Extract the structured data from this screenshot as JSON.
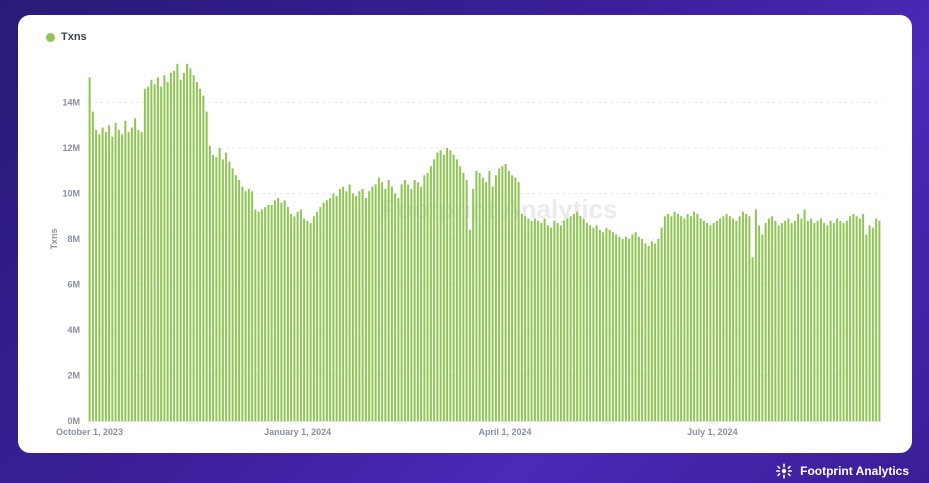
{
  "colors": {
    "series": "#8fc553",
    "background_start": "#2a1a78",
    "background_end": "#4a2ab8",
    "card": "#ffffff"
  },
  "watermark_text": "Footprint Analytics",
  "brand": {
    "text": "Footprint Analytics",
    "icon": "footprint-logo-icon"
  },
  "chart_data": {
    "type": "bar",
    "title": "",
    "xlabel": "",
    "ylabel": "Txns",
    "ylim": [
      0,
      16
    ],
    "y_unit": "M",
    "grid": true,
    "legend": {
      "position": "top-left",
      "entries": [
        "Txns"
      ]
    },
    "yticks": [
      "0M",
      "2M",
      "4M",
      "6M",
      "8M",
      "10M",
      "12M",
      "14M"
    ],
    "ytick_values": [
      0,
      2,
      4,
      6,
      8,
      10,
      12,
      14
    ],
    "xticks": [
      {
        "label": "October 1, 2023",
        "date": "2023-10-01"
      },
      {
        "label": "January 1, 2024",
        "date": "2024-01-01"
      },
      {
        "label": "April 1, 2024",
        "date": "2024-04-01"
      },
      {
        "label": "July 1, 2024",
        "date": "2024-07-01"
      }
    ],
    "x_start": "2023-10-01",
    "x_end": "2024-09-13",
    "series": [
      {
        "name": "Txns",
        "values": [
          15.1,
          13.6,
          12.8,
          12.6,
          12.9,
          12.7,
          13.0,
          12.5,
          13.1,
          12.8,
          12.6,
          13.2,
          12.7,
          12.9,
          13.3,
          12.8,
          12.7,
          14.6,
          14.7,
          15.0,
          14.8,
          15.1,
          14.7,
          15.2,
          14.9,
          15.3,
          15.4,
          15.7,
          15.0,
          15.3,
          15.7,
          15.5,
          15.2,
          14.9,
          14.6,
          14.3,
          13.6,
          12.1,
          11.7,
          11.6,
          12.0,
          11.5,
          11.8,
          11.4,
          11.1,
          10.8,
          10.6,
          10.3,
          10.1,
          10.2,
          10.1,
          9.3,
          9.2,
          9.3,
          9.4,
          9.5,
          9.5,
          9.7,
          9.8,
          9.6,
          9.7,
          9.4,
          9.1,
          9.0,
          9.2,
          9.3,
          8.9,
          8.8,
          8.7,
          9.0,
          9.2,
          9.4,
          9.6,
          9.7,
          9.8,
          10.0,
          9.9,
          10.2,
          10.3,
          10.1,
          10.4,
          10.0,
          9.9,
          10.1,
          10.2,
          9.8,
          10.1,
          10.3,
          10.4,
          10.7,
          10.5,
          10.2,
          10.6,
          10.3,
          10.0,
          9.8,
          10.4,
          10.6,
          10.4,
          10.2,
          10.6,
          10.5,
          10.3,
          10.8,
          10.9,
          11.2,
          11.5,
          11.8,
          11.9,
          11.7,
          12.0,
          11.9,
          11.7,
          11.5,
          11.2,
          10.9,
          10.6,
          8.4,
          10.2,
          11.0,
          10.9,
          10.7,
          10.5,
          11.0,
          10.3,
          10.8,
          11.1,
          11.2,
          11.3,
          11.0,
          10.8,
          10.7,
          10.5,
          9.1,
          9.0,
          8.9,
          8.8,
          8.9,
          8.8,
          8.7,
          8.9,
          8.6,
          8.5,
          8.8,
          8.7,
          8.6,
          8.8,
          8.9,
          9.0,
          9.1,
          9.2,
          9.0,
          8.9,
          8.7,
          8.6,
          8.5,
          8.6,
          8.4,
          8.3,
          8.5,
          8.4,
          8.3,
          8.2,
          8.1,
          8.0,
          8.1,
          8.0,
          8.2,
          8.3,
          8.1,
          8.0,
          7.8,
          7.7,
          7.9,
          7.8,
          8.0,
          8.5,
          9.0,
          9.1,
          9.0,
          9.2,
          9.1,
          9.0,
          8.9,
          9.1,
          9.0,
          9.2,
          9.1,
          8.9,
          8.8,
          8.7,
          8.6,
          8.7,
          8.8,
          8.9,
          9.0,
          9.1,
          9.0,
          8.9,
          8.8,
          9.0,
          9.2,
          9.1,
          9.0,
          7.2,
          9.3,
          8.6,
          8.2,
          8.7,
          8.9,
          9.0,
          8.8,
          8.6,
          8.7,
          8.8,
          8.9,
          8.7,
          8.8,
          9.1,
          8.9,
          9.3,
          8.8,
          8.9,
          8.7,
          8.8,
          8.9,
          8.7,
          8.6,
          8.8,
          8.7,
          8.9,
          8.8,
          8.7,
          8.8,
          9.0,
          9.1,
          9.0,
          8.9,
          9.1,
          8.2,
          8.6,
          8.5,
          8.9,
          8.8
        ]
      }
    ]
  }
}
